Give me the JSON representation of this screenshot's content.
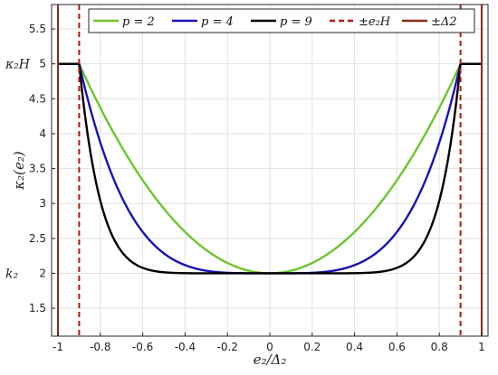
{
  "chart_data": {
    "type": "line",
    "title": "",
    "xlabel": "e₂/Δ₂",
    "ylabel": "κ₂(e₂)",
    "xlim": [
      -1.03,
      1.03
    ],
    "ylim": [
      1.1,
      5.85
    ],
    "xticks": [
      -1,
      -0.8,
      -0.6,
      -0.4,
      -0.2,
      0,
      0.2,
      0.4,
      0.6,
      0.8,
      1
    ],
    "xtick_labels": [
      "-1",
      "-0.8",
      "-0.6",
      "-0.4",
      "-0.2",
      "0",
      "0.2",
      "0.4",
      "0.6",
      "0.8",
      "1"
    ],
    "yticks": [
      1.5,
      2,
      2.5,
      3,
      3.5,
      4,
      4.5,
      5,
      5.5
    ],
    "ytick_labels": [
      "1.5",
      "2",
      "2.5",
      "3",
      "3.5",
      "4",
      "4.5",
      "5",
      "5.5"
    ],
    "grid": true,
    "legend_position": "top",
    "side_labels": [
      {
        "text": "κ₂H",
        "y": 5
      },
      {
        "text": "k₂",
        "y": 2
      }
    ],
    "parameters": {
      "k2": 2,
      "kappa2H": 5,
      "e2H": 0.9,
      "delta2": 1
    },
    "series": [
      {
        "name": "p = 2",
        "color": "#6cc62e",
        "style": "solid",
        "exponent": 2
      },
      {
        "name": "p = 4",
        "color": "#1a12b8",
        "style": "solid",
        "exponent": 4
      },
      {
        "name": "p = 9",
        "color": "#000000",
        "style": "solid",
        "exponent": 9
      },
      {
        "name": "±e₂H",
        "color": "#b81414",
        "style": "dashed",
        "x_positions": [
          -0.9,
          0.9
        ]
      },
      {
        "name": "±Δ2",
        "color": "#8b2a1a",
        "style": "solid",
        "x_positions": [
          -1,
          1
        ]
      }
    ]
  }
}
